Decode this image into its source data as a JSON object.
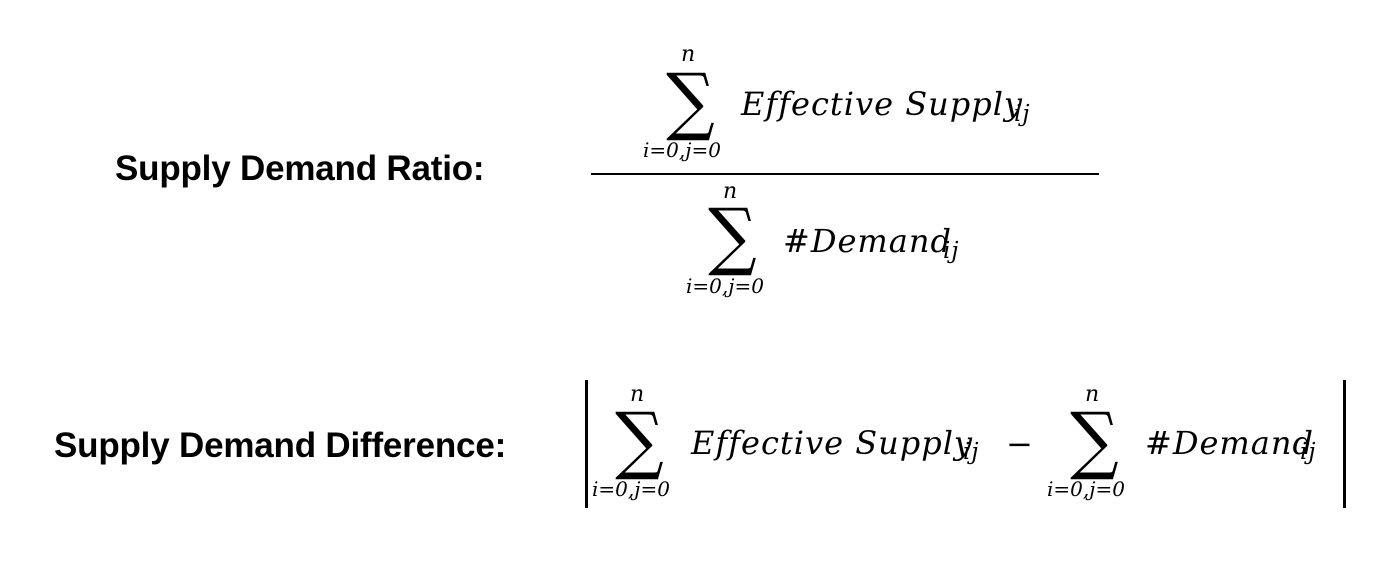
{
  "ratio": {
    "label": "Supply Demand Ratio:",
    "numerator": {
      "upper_limit": "n",
      "lower_limit": "i=0,j=0",
      "term": "Effective Supply",
      "subscript": "ij"
    },
    "denominator": {
      "upper_limit": "n",
      "lower_limit": "i=0,j=0",
      "term": "#Demand",
      "subscript": "ij"
    }
  },
  "difference": {
    "label": "Supply Demand Difference:",
    "left": {
      "upper_limit": "n",
      "lower_limit": "i=0,j=0",
      "term": "Effective Supply",
      "subscript": "ij"
    },
    "operator": "−",
    "right": {
      "upper_limit": "n",
      "lower_limit": "i=0,j=0",
      "term": "#Demand",
      "subscript": "ij"
    }
  },
  "symbols": {
    "sum": "∑"
  }
}
